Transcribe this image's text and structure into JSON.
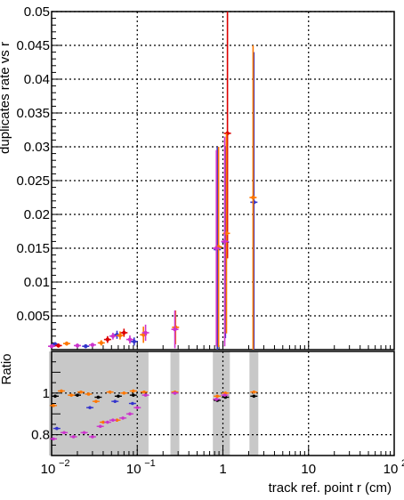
{
  "chart_data": [
    {
      "type": "scatter",
      "ylabel": "duplicates rate vs r",
      "xscale": "log",
      "xlim": [
        0.01,
        100
      ],
      "ylim": [
        0,
        0.05
      ],
      "grid": true,
      "y_ticks": [
        "0.005",
        "0.01",
        "0.015",
        "0.02",
        "0.025",
        "0.03",
        "0.035",
        "0.04",
        "0.045",
        "0.05"
      ],
      "series": [
        {
          "color": "#3333cc",
          "points": [
            {
              "x": 0.011,
              "y": 0.0008,
              "err": 0.0003
            },
            {
              "x": 0.025,
              "y": 0.0005,
              "err": 0.0003
            },
            {
              "x": 0.058,
              "y": 0.0022,
              "err": 0.0006
            },
            {
              "x": 0.092,
              "y": 0.0012,
              "err": 0.0006
            },
            {
              "x": 0.86,
              "y": 0.0148,
              "err": 0.0152
            },
            {
              "x": 1.07,
              "y": 0.0159,
              "err": 0.0142
            },
            {
              "x": 2.3,
              "y": 0.0218,
              "err": 0.0222
            }
          ]
        },
        {
          "color": "#dd0000",
          "points": [
            {
              "x": 0.012,
              "y": 0.0006,
              "err": 0.0003
            },
            {
              "x": 0.045,
              "y": 0.0015,
              "err": 0.0005
            },
            {
              "x": 0.07,
              "y": 0.0025,
              "err": 0.0006
            },
            {
              "x": 1.13,
              "y": 0.032,
              "err": 0.0185
            }
          ]
        },
        {
          "color": "#ff7700",
          "points": [
            {
              "x": 0.015,
              "y": 0.0009,
              "err": 0.0003
            },
            {
              "x": 0.038,
              "y": 0.001,
              "err": 0.0004
            },
            {
              "x": 0.063,
              "y": 0.0021,
              "err": 0.0006
            },
            {
              "x": 0.118,
              "y": 0.0022,
              "err": 0.0012
            },
            {
              "x": 0.28,
              "y": 0.0033,
              "err": 0.0025
            },
            {
              "x": 0.89,
              "y": 0.0152,
              "err": 0.0148
            },
            {
              "x": 1.1,
              "y": 0.0172,
              "err": 0.0148
            },
            {
              "x": 2.25,
              "y": 0.0225,
              "err": 0.0225
            }
          ]
        },
        {
          "color": "#cc33cc",
          "points": [
            {
              "x": 0.01,
              "y": 0.0005,
              "err": 0.0003
            },
            {
              "x": 0.02,
              "y": 0.0006,
              "err": 0.0003
            },
            {
              "x": 0.03,
              "y": 0.0007,
              "err": 0.0003
            },
            {
              "x": 0.052,
              "y": 0.002,
              "err": 0.0005
            },
            {
              "x": 0.082,
              "y": 0.0015,
              "err": 0.0006
            },
            {
              "x": 0.125,
              "y": 0.0025,
              "err": 0.0012
            },
            {
              "x": 0.275,
              "y": 0.003,
              "err": 0.0028
            },
            {
              "x": 0.84,
              "y": 0.015,
              "err": 0.0145
            },
            {
              "x": 1.05,
              "y": 0.016,
              "err": 0.0155
            }
          ]
        }
      ]
    },
    {
      "type": "scatter",
      "xlabel": "track ref. point r (cm)",
      "ylabel": "Ratio",
      "xscale": "log",
      "xlim": [
        0.01,
        100
      ],
      "ylim": [
        0.7,
        1.2
      ],
      "grid": true,
      "y_ticks": [
        "0.8",
        "1"
      ],
      "x_ticks": [
        {
          "value": 0.01,
          "base": "10",
          "exp": "−2"
        },
        {
          "value": 0.1,
          "base": "10",
          "exp": "−1"
        },
        {
          "value": 1,
          "base": "1",
          "exp": ""
        },
        {
          "value": 10,
          "base": "10",
          "exp": ""
        },
        {
          "value": 100,
          "base": "10",
          "exp": "2"
        }
      ],
      "uncertainty_bands": [
        {
          "x": 0.0105,
          "lo": 0.7,
          "hi": 1.2
        },
        {
          "x": 0.0125,
          "lo": 0.7,
          "hi": 1.2
        },
        {
          "x": 0.015,
          "lo": 0.7,
          "hi": 1.2
        },
        {
          "x": 0.018,
          "lo": 0.7,
          "hi": 1.2
        },
        {
          "x": 0.022,
          "lo": 0.7,
          "hi": 1.2
        },
        {
          "x": 0.027,
          "lo": 0.7,
          "hi": 1.2
        },
        {
          "x": 0.033,
          "lo": 0.7,
          "hi": 1.2
        },
        {
          "x": 0.04,
          "lo": 0.7,
          "hi": 1.2
        },
        {
          "x": 0.048,
          "lo": 0.7,
          "hi": 1.2
        },
        {
          "x": 0.058,
          "lo": 0.7,
          "hi": 1.2
        },
        {
          "x": 0.07,
          "lo": 0.7,
          "hi": 1.2
        },
        {
          "x": 0.085,
          "lo": 0.7,
          "hi": 1.2
        },
        {
          "x": 0.1,
          "lo": 0.7,
          "hi": 1.2
        },
        {
          "x": 0.12,
          "lo": 0.7,
          "hi": 1.2
        },
        {
          "x": 0.275,
          "lo": 0.7,
          "hi": 1.2
        },
        {
          "x": 0.86,
          "lo": 0.7,
          "hi": 1.2
        },
        {
          "x": 1.07,
          "lo": 0.7,
          "hi": 1.2
        },
        {
          "x": 2.3,
          "lo": 0.7,
          "hi": 1.2
        }
      ],
      "series": [
        {
          "color": "#000000",
          "points": [
            {
              "x": 0.011,
              "y": 0.985
            },
            {
              "x": 0.02,
              "y": 0.99
            },
            {
              "x": 0.035,
              "y": 0.98
            },
            {
              "x": 0.06,
              "y": 0.985
            },
            {
              "x": 0.09,
              "y": 0.99
            },
            {
              "x": 0.275,
              "y": 1.0
            },
            {
              "x": 0.86,
              "y": 0.965
            },
            {
              "x": 1.07,
              "y": 0.98
            },
            {
              "x": 2.3,
              "y": 0.985
            }
          ]
        },
        {
          "color": "#ff7700",
          "points": [
            {
              "x": 0.0105,
              "y": 0.94
            },
            {
              "x": 0.013,
              "y": 1.01
            },
            {
              "x": 0.017,
              "y": 0.99
            },
            {
              "x": 0.022,
              "y": 1.005
            },
            {
              "x": 0.027,
              "y": 0.995
            },
            {
              "x": 0.033,
              "y": 0.96
            },
            {
              "x": 0.04,
              "y": 0.86
            },
            {
              "x": 0.048,
              "y": 1.005
            },
            {
              "x": 0.058,
              "y": 0.87
            },
            {
              "x": 0.07,
              "y": 1.0
            },
            {
              "x": 0.09,
              "y": 1.01
            },
            {
              "x": 0.12,
              "y": 1.005
            },
            {
              "x": 0.275,
              "y": 1.005
            },
            {
              "x": 0.86,
              "y": 0.985
            },
            {
              "x": 1.07,
              "y": 1.0
            },
            {
              "x": 2.3,
              "y": 1.005
            }
          ]
        },
        {
          "color": "#cc33cc",
          "points": [
            {
              "x": 0.0105,
              "y": 0.78
            },
            {
              "x": 0.014,
              "y": 0.81
            },
            {
              "x": 0.018,
              "y": 0.79
            },
            {
              "x": 0.024,
              "y": 0.81
            },
            {
              "x": 0.03,
              "y": 0.79
            },
            {
              "x": 0.037,
              "y": 0.84
            },
            {
              "x": 0.045,
              "y": 0.86
            },
            {
              "x": 0.052,
              "y": 0.87
            },
            {
              "x": 0.068,
              "y": 0.88
            },
            {
              "x": 0.082,
              "y": 0.9
            },
            {
              "x": 0.1,
              "y": 0.93
            },
            {
              "x": 0.125,
              "y": 0.99
            },
            {
              "x": 0.275,
              "y": 1.0
            },
            {
              "x": 0.84,
              "y": 0.97
            },
            {
              "x": 1.05,
              "y": 0.99
            }
          ]
        },
        {
          "color": "#3333cc",
          "points": [
            {
              "x": 0.0115,
              "y": 0.83
            },
            {
              "x": 0.028,
              "y": 0.93
            },
            {
              "x": 0.055,
              "y": 0.96
            },
            {
              "x": 0.088,
              "y": 0.95
            }
          ]
        }
      ]
    }
  ]
}
